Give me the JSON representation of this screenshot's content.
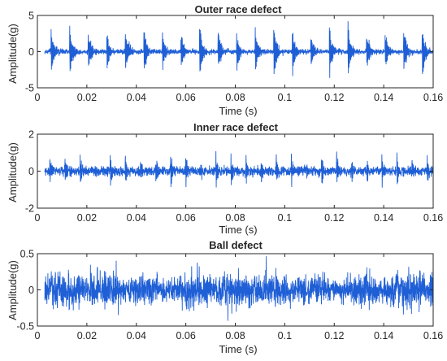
{
  "style": {
    "signal_color": "#1f5fd6",
    "axis_color": "#262626",
    "background": "#ffffff"
  },
  "chart_data": [
    {
      "type": "line",
      "title": "Outer race defect",
      "xlabel": "Time (s)",
      "ylabel": "Amplitude(g)",
      "xlim": [
        0,
        0.16
      ],
      "ylim": [
        -5,
        5
      ],
      "xticks": [
        "0",
        "0.02",
        "0.04",
        "0.06",
        "0.08",
        "0.1",
        "0.12",
        "0.14",
        "0.16"
      ],
      "yticks": [
        "-5",
        "0",
        "5"
      ],
      "grid": false,
      "signal": {
        "t_start": 0.003,
        "t_end": 0.16,
        "impulse_period_s": 0.0075,
        "first_impulse_s": 0.0055,
        "peak_amplitude": 4.8,
        "noise_level": 0.35,
        "pattern": "periodic impulses with exponential decay"
      }
    },
    {
      "type": "line",
      "title": "Inner race defect",
      "xlabel": "Time (s)",
      "ylabel": "Amplitude(g)",
      "xlim": [
        0,
        0.16
      ],
      "ylim": [
        -2,
        2
      ],
      "xticks": [
        "0",
        "0.02",
        "0.04",
        "0.06",
        "0.08",
        "0.1",
        "0.12",
        "0.14",
        "0.16"
      ],
      "yticks": [
        "-2",
        "0",
        "2"
      ],
      "grid": false,
      "signal": {
        "t_start": 0.003,
        "t_end": 0.16,
        "impulse_period_s": 0.0061,
        "first_impulse_s": 0.005,
        "peak_amplitude": 1.3,
        "noise_level": 0.25,
        "pattern": "amplitude-modulated periodic impulses"
      }
    },
    {
      "type": "line",
      "title": "Ball defect",
      "xlabel": "Time (s)",
      "ylabel": "Amplitude(g)",
      "xlim": [
        0,
        0.16
      ],
      "ylim": [
        -0.5,
        0.5
      ],
      "xticks": [
        "0",
        "0.02",
        "0.04",
        "0.06",
        "0.08",
        "0.1",
        "0.12",
        "0.14",
        "0.16"
      ],
      "yticks": [
        "-0.5",
        "0",
        "0.5"
      ],
      "grid": false,
      "signal": {
        "t_start": 0.003,
        "t_end": 0.16,
        "peak_amplitude": 0.5,
        "noise_level": 0.2,
        "pattern": "broadband noise with irregular bursts"
      }
    }
  ]
}
